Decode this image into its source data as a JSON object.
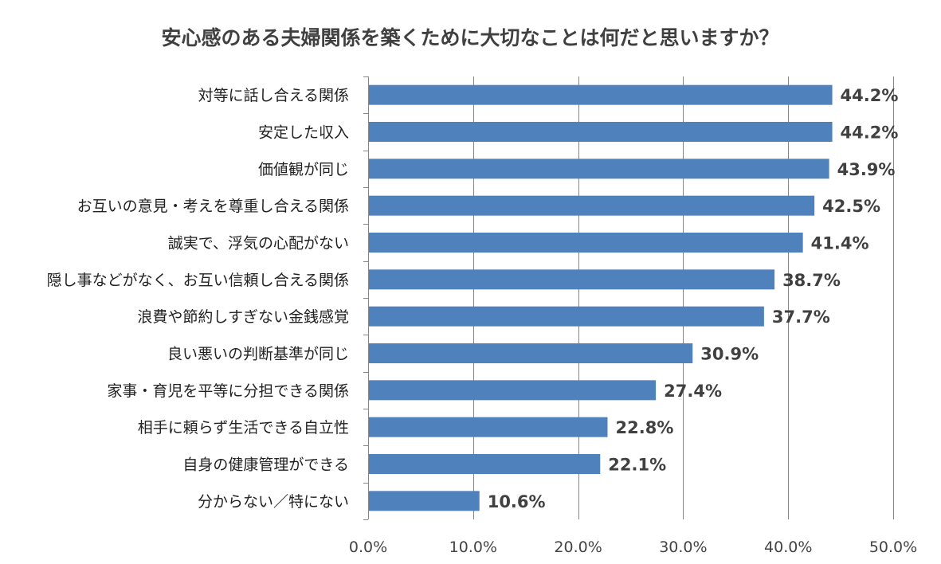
{
  "chart_data": {
    "type": "bar",
    "orientation": "horizontal",
    "title": "安心感のある夫婦関係を築くために大切なことは何だと思いますか？",
    "categories": [
      "対等に話し合える関係",
      "安定した収入",
      "価値観が同じ",
      "お互いの意見・考えを尊重し合える関係",
      "誠実で、浮気の心配がない",
      "隠し事などがなく、お互い信頼し合える関係",
      "浪費や節約しすぎない金銭感覚",
      "良い悪いの判断基準が同じ",
      "家事・育児を平等に分担できる関係",
      "相手に頼らず生活できる自立性",
      "自身の健康管理ができる",
      "分からない／特にない"
    ],
    "values": [
      44.2,
      44.2,
      43.9,
      42.5,
      41.4,
      38.7,
      37.7,
      30.9,
      27.4,
      22.8,
      22.1,
      10.6
    ],
    "value_labels": [
      "44.2%",
      "44.2%",
      "43.9%",
      "42.5%",
      "41.4%",
      "38.7%",
      "37.7%",
      "30.9%",
      "27.4%",
      "22.8%",
      "22.1%",
      "10.6%"
    ],
    "xlim": [
      0,
      50
    ],
    "x_ticks": [
      0,
      10,
      20,
      30,
      40,
      50
    ],
    "x_tick_labels": [
      "0.0%",
      "10.0%",
      "20.0%",
      "30.0%",
      "40.0%",
      "50.0%"
    ],
    "grid": "vertical",
    "legend": "none",
    "bar_color": "#4f81bd",
    "grid_color": "#868686"
  }
}
